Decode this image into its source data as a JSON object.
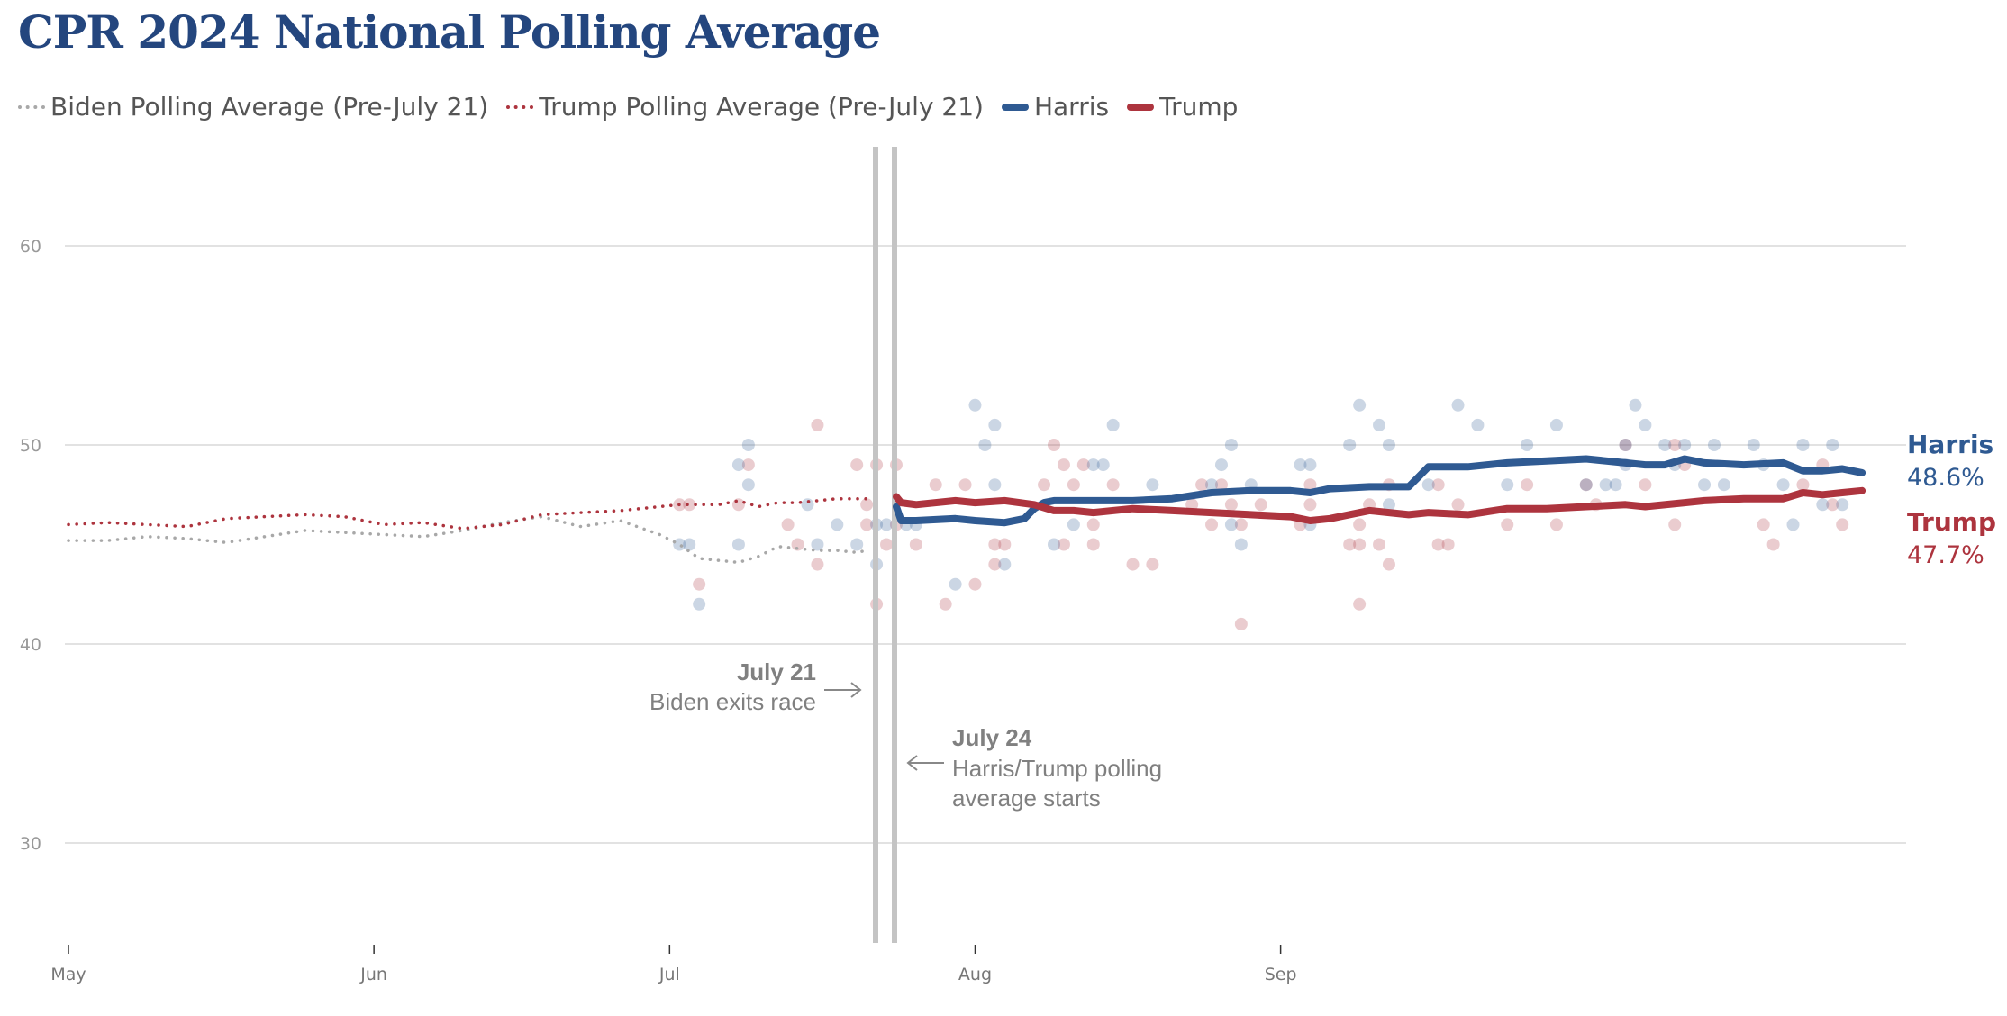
{
  "title": "CPR 2024 National Polling Average",
  "legend": [
    {
      "label": "Biden Polling Average (Pre-July 21)",
      "style": "dotted",
      "color": "#a8a8a8"
    },
    {
      "label": "Trump Polling Average (Pre-July 21)",
      "style": "dotted",
      "color": "#ad343e"
    },
    {
      "label": "Harris",
      "style": "solid",
      "color": "#2f5a92"
    },
    {
      "label": "Trump",
      "style": "solid",
      "color": "#ad343e"
    }
  ],
  "annotations": [
    {
      "date": "July 21",
      "bold": "July 21",
      "text": [
        "Biden exits race"
      ]
    },
    {
      "date": "July 24",
      "bold": "July 24",
      "text": [
        "Harris/Trump polling",
        "average starts"
      ]
    }
  ],
  "end_labels": {
    "harris": {
      "name": "Harris",
      "value": "48.6%",
      "color": "#2f5a92"
    },
    "trump": {
      "name": "Trump",
      "value": "47.7%",
      "color": "#ad343e"
    }
  },
  "chart_data": {
    "type": "line",
    "title": "CPR 2024 National Polling Average",
    "xlabel": "",
    "ylabel": "",
    "x_unit": "days since May 1, 2024",
    "xlim": [
      -2,
      185
    ],
    "ylim": [
      25,
      64
    ],
    "yticks": [
      30,
      40,
      50,
      60
    ],
    "xticks": [
      {
        "label": "May",
        "day": 0
      },
      {
        "label": "Jun",
        "day": 31
      },
      {
        "label": "Jul",
        "day": 61
      },
      {
        "label": "Aug",
        "day": 92
      },
      {
        "label": "Sep",
        "day": 123
      }
    ],
    "grid": true,
    "vertical_markers": [
      {
        "label": "July 21",
        "day": 81
      },
      {
        "label": "July 24",
        "day": 83
      }
    ],
    "series": [
      {
        "name": "Biden Polling Average (Pre-July 21)",
        "style": "dotted",
        "color": "#a8a8a8",
        "x": [
          0,
          4,
          8,
          12,
          16,
          20,
          24,
          28,
          32,
          36,
          40,
          44,
          48,
          52,
          56,
          60,
          62,
          64,
          66,
          68,
          70,
          72,
          74,
          76,
          78,
          80,
          81
        ],
        "y": [
          45.2,
          45.2,
          45.4,
          45.3,
          45.1,
          45.4,
          45.7,
          45.6,
          45.5,
          45.4,
          45.7,
          46.1,
          46.4,
          45.9,
          46.2,
          45.5,
          45.0,
          44.3,
          44.2,
          44.1,
          44.4,
          44.9,
          44.8,
          44.7,
          44.7,
          44.6,
          44.7
        ]
      },
      {
        "name": "Trump Polling Average (Pre-July 21)",
        "style": "dotted",
        "color": "#ad343e",
        "x": [
          0,
          4,
          8,
          12,
          16,
          20,
          24,
          28,
          32,
          36,
          40,
          44,
          48,
          52,
          56,
          60,
          62,
          64,
          66,
          68,
          70,
          72,
          74,
          76,
          78,
          80,
          81
        ],
        "y": [
          46.0,
          46.1,
          46.0,
          45.9,
          46.3,
          46.4,
          46.5,
          46.4,
          46.0,
          46.1,
          45.8,
          46.0,
          46.5,
          46.6,
          46.7,
          46.9,
          47.0,
          47.0,
          47.0,
          47.2,
          46.9,
          47.1,
          47.1,
          47.2,
          47.3,
          47.3,
          47.3
        ]
      },
      {
        "name": "Harris",
        "style": "solid",
        "color": "#2f5a92",
        "x": [
          84,
          84.5,
          86,
          90,
          92,
          95,
          97,
          98,
          99,
          100,
          104,
          108,
          112,
          116,
          120,
          124,
          126,
          128,
          132,
          136,
          137,
          138,
          142,
          146,
          150,
          154,
          158,
          160,
          162,
          164,
          166,
          170,
          174,
          176,
          178,
          180,
          182
        ],
        "y": [
          46.9,
          46.2,
          46.2,
          46.3,
          46.2,
          46.1,
          46.3,
          46.8,
          47.1,
          47.2,
          47.2,
          47.2,
          47.3,
          47.6,
          47.7,
          47.7,
          47.6,
          47.8,
          47.9,
          47.9,
          48.4,
          48.9,
          48.9,
          49.1,
          49.2,
          49.3,
          49.1,
          49.0,
          49.0,
          49.3,
          49.1,
          49.0,
          49.1,
          48.7,
          48.7,
          48.8,
          48.6
        ]
      },
      {
        "name": "Trump",
        "style": "solid",
        "color": "#ad343e",
        "x": [
          84,
          84.5,
          86,
          90,
          92,
          95,
          98,
          100,
          102,
          104,
          108,
          112,
          116,
          120,
          124,
          126,
          128,
          132,
          134,
          136,
          138,
          142,
          146,
          150,
          154,
          158,
          160,
          164,
          166,
          170,
          174,
          176,
          178,
          180,
          182
        ],
        "y": [
          47.4,
          47.1,
          47.0,
          47.2,
          47.1,
          47.2,
          47.0,
          46.7,
          46.7,
          46.6,
          46.8,
          46.7,
          46.6,
          46.5,
          46.4,
          46.2,
          46.3,
          46.7,
          46.6,
          46.5,
          46.6,
          46.5,
          46.8,
          46.8,
          46.9,
          47.0,
          46.9,
          47.1,
          47.2,
          47.3,
          47.3,
          47.6,
          47.5,
          47.6,
          47.7
        ]
      }
    ],
    "polls": {
      "harris_biden": {
        "color": "#2f5a92",
        "points": [
          [
            62,
            45
          ],
          [
            63,
            45
          ],
          [
            64,
            42
          ],
          [
            68,
            49
          ],
          [
            69,
            50
          ],
          [
            69,
            48
          ],
          [
            68,
            45
          ],
          [
            76,
            45
          ],
          [
            75,
            47
          ],
          [
            78,
            46
          ],
          [
            80,
            45
          ],
          [
            82,
            46
          ],
          [
            82,
            44
          ],
          [
            83,
            46
          ],
          [
            85,
            46
          ],
          [
            86,
            46
          ],
          [
            90,
            43
          ],
          [
            92,
            52
          ],
          [
            93,
            50
          ],
          [
            94,
            51
          ],
          [
            94,
            48
          ],
          [
            95,
            44
          ],
          [
            100,
            45
          ],
          [
            102,
            46
          ],
          [
            104,
            49
          ],
          [
            105,
            49
          ],
          [
            106,
            51
          ],
          [
            110,
            48
          ],
          [
            116,
            48
          ],
          [
            117,
            49
          ],
          [
            118,
            50
          ],
          [
            118,
            46
          ],
          [
            119,
            45
          ],
          [
            120,
            48
          ],
          [
            125,
            49
          ],
          [
            126,
            49
          ],
          [
            126,
            46
          ],
          [
            130,
            50
          ],
          [
            131,
            52
          ],
          [
            133,
            51
          ],
          [
            134,
            50
          ],
          [
            134,
            47
          ],
          [
            138,
            48
          ],
          [
            141,
            52
          ],
          [
            143,
            51
          ],
          [
            146,
            48
          ],
          [
            148,
            50
          ],
          [
            151,
            51
          ],
          [
            154,
            48
          ],
          [
            156,
            48
          ],
          [
            157,
            48
          ],
          [
            158,
            49
          ],
          [
            158,
            50
          ],
          [
            159,
            52
          ],
          [
            160,
            51
          ],
          [
            162,
            50
          ],
          [
            163,
            49
          ],
          [
            164,
            50
          ],
          [
            166,
            48
          ],
          [
            167,
            50
          ],
          [
            168,
            48
          ],
          [
            171,
            50
          ],
          [
            172,
            49
          ],
          [
            174,
            48
          ],
          [
            175,
            46
          ],
          [
            176,
            50
          ],
          [
            178,
            47
          ],
          [
            179,
            50
          ],
          [
            180,
            47
          ]
        ]
      },
      "trump": {
        "color": "#ad343e",
        "points": [
          [
            62,
            47
          ],
          [
            63,
            47
          ],
          [
            64,
            43
          ],
          [
            68,
            47
          ],
          [
            69,
            49
          ],
          [
            73,
            46
          ],
          [
            74,
            45
          ],
          [
            76,
            51
          ],
          [
            76,
            44
          ],
          [
            80,
            49
          ],
          [
            81,
            47
          ],
          [
            81,
            46
          ],
          [
            82,
            49
          ],
          [
            82,
            42
          ],
          [
            83,
            45
          ],
          [
            84,
            49
          ],
          [
            84,
            46
          ],
          [
            86,
            45
          ],
          [
            88,
            48
          ],
          [
            89,
            42
          ],
          [
            91,
            48
          ],
          [
            92,
            43
          ],
          [
            94,
            45
          ],
          [
            94,
            44
          ],
          [
            95,
            45
          ],
          [
            99,
            48
          ],
          [
            100,
            50
          ],
          [
            101,
            49
          ],
          [
            103,
            49
          ],
          [
            102,
            48
          ],
          [
            101,
            45
          ],
          [
            104,
            45
          ],
          [
            104,
            46
          ],
          [
            106,
            48
          ],
          [
            108,
            44
          ],
          [
            110,
            44
          ],
          [
            114,
            47
          ],
          [
            115,
            48
          ],
          [
            116,
            46
          ],
          [
            117,
            48
          ],
          [
            118,
            47
          ],
          [
            119,
            46
          ],
          [
            119,
            41
          ],
          [
            121,
            47
          ],
          [
            125,
            46
          ],
          [
            126,
            47
          ],
          [
            126,
            48
          ],
          [
            130,
            45
          ],
          [
            131,
            42
          ],
          [
            131,
            46
          ],
          [
            131,
            45
          ],
          [
            132,
            47
          ],
          [
            133,
            45
          ],
          [
            134,
            44
          ],
          [
            134,
            48
          ],
          [
            139,
            45
          ],
          [
            140,
            45
          ],
          [
            139,
            48
          ],
          [
            141,
            47
          ],
          [
            146,
            46
          ],
          [
            148,
            48
          ],
          [
            151,
            46
          ],
          [
            154,
            48
          ],
          [
            155,
            47
          ],
          [
            158,
            50
          ],
          [
            160,
            48
          ],
          [
            163,
            46
          ],
          [
            163,
            50
          ],
          [
            164,
            49
          ],
          [
            172,
            46
          ],
          [
            173,
            45
          ],
          [
            176,
            48
          ],
          [
            178,
            49
          ],
          [
            179,
            47
          ],
          [
            180,
            46
          ]
        ]
      }
    }
  }
}
